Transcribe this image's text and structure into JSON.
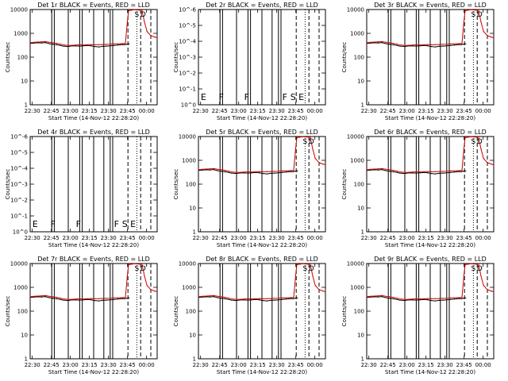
{
  "chart_data": [
    {
      "type": "line",
      "title": "Det 1r  BLACK = Events, RED = LLD",
      "variant": "full",
      "ylabel": "Counts/sec",
      "xlabel": "Start Time (14-Nov-12 22:28:20)",
      "x_ticks": [
        "22:30",
        "22:45",
        "23:00",
        "23:15",
        "23:30",
        "23:45",
        "00:00"
      ],
      "y_ticks": [
        "1",
        "10",
        "100",
        "1000",
        "10000"
      ],
      "yscale": "log",
      "ylim": [
        1,
        10000
      ],
      "flags": [
        "S",
        "D"
      ]
    },
    {
      "type": "line",
      "title": "Det 2r  BLACK = Events, RED = LLD",
      "variant": "empty",
      "ylabel": "Counts/sec",
      "xlabel": "Start Time (14-Nov-12 22:28:20)",
      "x_ticks": [
        "22:30",
        "22:45",
        "23:00",
        "23:15",
        "23:30",
        "23:45",
        "00:00"
      ],
      "y_ticks": [
        "10^0",
        "10^-1",
        "10^-2",
        "10^-3",
        "10^-4",
        "10^-5",
        "10^-6"
      ],
      "yscale": "log",
      "flags": [
        "E",
        "F",
        "F",
        "F",
        "S",
        "E"
      ]
    },
    {
      "type": "line",
      "title": "Det 3r  BLACK = Events, RED = LLD",
      "variant": "full",
      "ylabel": "Counts/sec",
      "xlabel": "Start Time (14-Nov-12 22:28:20)",
      "x_ticks": [
        "22:30",
        "22:45",
        "23:00",
        "23:15",
        "23:30",
        "23:45",
        "00:00"
      ],
      "y_ticks": [
        "1",
        "10",
        "100",
        "1000",
        "10000"
      ],
      "yscale": "log",
      "ylim": [
        1,
        10000
      ],
      "flags": [
        "S",
        "D"
      ]
    },
    {
      "type": "line",
      "title": "Det 4r  BLACK = Events, RED = LLD",
      "variant": "empty",
      "ylabel": "Counts/sec",
      "xlabel": "Start Time (14-Nov-12 22:28:20)",
      "x_ticks": [
        "22:30",
        "22:45",
        "23:00",
        "23:15",
        "23:30",
        "23:45",
        "00:00"
      ],
      "y_ticks": [
        "10^0",
        "10^-1",
        "10^-2",
        "10^-3",
        "10^-4",
        "10^-5",
        "10^-6"
      ],
      "yscale": "log",
      "flags": [
        "E",
        "F",
        "F",
        "F",
        "S",
        "E"
      ]
    },
    {
      "type": "line",
      "title": "Det 5r  BLACK = Events, RED = LLD",
      "variant": "full",
      "ylabel": "Counts/sec",
      "xlabel": "Start Time (14-Nov-12 22:28:20)",
      "x_ticks": [
        "22:30",
        "22:45",
        "23:00",
        "23:15",
        "23:30",
        "23:45",
        "00:00"
      ],
      "y_ticks": [
        "1",
        "10",
        "100",
        "1000",
        "10000"
      ],
      "yscale": "log",
      "ylim": [
        1,
        10000
      ],
      "flags": [
        "S",
        "D"
      ]
    },
    {
      "type": "line",
      "title": "Det 6r  BLACK = Events, RED = LLD",
      "variant": "full",
      "ylabel": "Counts/sec",
      "xlabel": "Start Time (14-Nov-12 22:28:20)",
      "x_ticks": [
        "22:30",
        "22:45",
        "23:00",
        "23:15",
        "23:30",
        "23:45",
        "00:00"
      ],
      "y_ticks": [
        "1",
        "10",
        "100",
        "1000",
        "10000"
      ],
      "yscale": "log",
      "ylim": [
        1,
        10000
      ],
      "flags": [
        "S",
        "D"
      ]
    },
    {
      "type": "line",
      "title": "Det 7r  BLACK = Events, RED = LLD",
      "variant": "full",
      "ylabel": "Counts/sec",
      "xlabel": "Start Time (14-Nov-12 22:28:20)",
      "x_ticks": [
        "22:30",
        "22:45",
        "23:00",
        "23:15",
        "23:30",
        "23:45",
        "00:00"
      ],
      "y_ticks": [
        "1",
        "10",
        "100",
        "1000",
        "10000"
      ],
      "yscale": "log",
      "ylim": [
        1,
        10000
      ],
      "flags": [
        "S",
        "D"
      ]
    },
    {
      "type": "line",
      "title": "Det 8r  BLACK = Events, RED = LLD",
      "variant": "full",
      "ylabel": "Counts/sec",
      "xlabel": "Start Time (14-Nov-12 22:28:20)",
      "x_ticks": [
        "22:30",
        "22:45",
        "23:00",
        "23:15",
        "23:30",
        "23:45",
        "00:00"
      ],
      "y_ticks": [
        "1",
        "10",
        "100",
        "1000",
        "10000"
      ],
      "yscale": "log",
      "ylim": [
        1,
        10000
      ],
      "flags": [
        "S",
        "D"
      ]
    },
    {
      "type": "line",
      "title": "Det 9r  BLACK = Events, RED = LLD",
      "variant": "full",
      "ylabel": "Counts/sec",
      "xlabel": "Start Time (14-Nov-12 22:28:20)",
      "x_ticks": [
        "22:30",
        "22:45",
        "23:00",
        "23:15",
        "23:30",
        "23:45",
        "00:00"
      ],
      "y_ticks": [
        "1",
        "10",
        "100",
        "1000",
        "10000"
      ],
      "yscale": "log",
      "ylim": [
        1,
        10000
      ],
      "flags": [
        "S",
        "D"
      ]
    }
  ],
  "shared": {
    "x_range_minutes": [
      0,
      100
    ],
    "x_tick_minutes": [
      1.67,
      16.67,
      31.67,
      46.67,
      61.67,
      76.67,
      91.67
    ],
    "events_series": {
      "color": "#000000",
      "x": [
        0,
        3,
        6,
        9,
        12,
        15,
        18,
        21,
        24,
        26,
        30,
        33,
        36,
        39,
        42,
        45,
        48,
        51,
        54,
        57,
        60,
        63,
        66,
        69,
        71,
        73,
        74.5,
        76,
        78
      ],
      "y": [
        380,
        390,
        400,
        395,
        410,
        370,
        350,
        330,
        310,
        290,
        280,
        300,
        295,
        290,
        300,
        310,
        300,
        280,
        270,
        285,
        290,
        300,
        310,
        320,
        330,
        340,
        330,
        350,
        360
      ]
    },
    "lld_series": {
      "color": "#cc0000",
      "x": [
        0,
        3,
        6,
        9,
        12,
        15,
        18,
        21,
        24,
        27,
        30,
        33,
        36,
        39,
        42,
        45,
        48,
        51,
        54,
        57,
        60,
        63,
        66,
        69,
        72,
        75,
        76.5,
        77.5,
        80,
        82,
        86,
        88,
        90,
        92,
        95,
        98,
        100
      ],
      "y": [
        400,
        420,
        430,
        440,
        450,
        420,
        400,
        380,
        350,
        320,
        310,
        315,
        320,
        330,
        320,
        330,
        340,
        330,
        335,
        340,
        345,
        350,
        360,
        360,
        370,
        380,
        3000,
        9000,
        9500,
        9800,
        9500,
        9700,
        3000,
        1200,
        800,
        700,
        650
      ]
    },
    "solid_marker_minutes": [
      17,
      19,
      30,
      39,
      41,
      50,
      58,
      63,
      65
    ],
    "dashed_marker_minutes": [
      77,
      87,
      95
    ],
    "dotted_marker_minutes": [
      84
    ],
    "accent_colors": {
      "events": "#000000",
      "lld": "#cc0000"
    }
  }
}
